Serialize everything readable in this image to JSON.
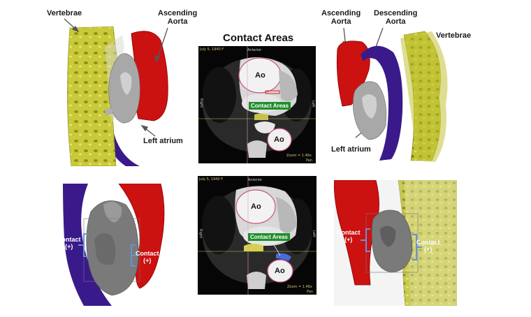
{
  "title": "Contact Areas",
  "top_left": {
    "vertebrae": "Vertebrae",
    "ascending_aorta": "Ascending\nAorta",
    "left_atrium": "Left atrium"
  },
  "top_right": {
    "ascending_aorta": "Ascending\nAorta",
    "descending_aorta": "Descending\nAorta",
    "vertebrae": "Vertebrae",
    "left_atrium": "Left atrium"
  },
  "ct_top": {
    "date": "July 5, 1940 F",
    "anterior": "Anterior",
    "right": "Right",
    "left": "Left",
    "ao_upper": "Ao",
    "ao_lower": "Ao",
    "contact_areas": "Contact Areas",
    "zoom": "Zoom = 1.46x",
    "pan": "Pan"
  },
  "ct_bottom": {
    "date": "July 5, 1940 F",
    "anterior": "Anterior",
    "right": "Right",
    "left": "Left",
    "ao_upper": "Ao",
    "ao_lower": "Ao",
    "contact_areas": "Contact Areas",
    "zoom": "Zoom = 1.46x",
    "pan": "Pan"
  },
  "bottom_left": {
    "contact_left": "Contact\n(+)",
    "contact_right": "Contact\n(+)"
  },
  "bottom_right": {
    "contact_left": "Contact\n(+)",
    "contact_right": "Contact\n(+)"
  },
  "colors": {
    "vertebrae": "#c9c93a",
    "aorta": "#cc1111",
    "descending": "#3a1a8a",
    "atrium": "#9a9a9a",
    "contact_green": "#1e8e2a",
    "bracket_blue": "#6a8fd8"
  }
}
